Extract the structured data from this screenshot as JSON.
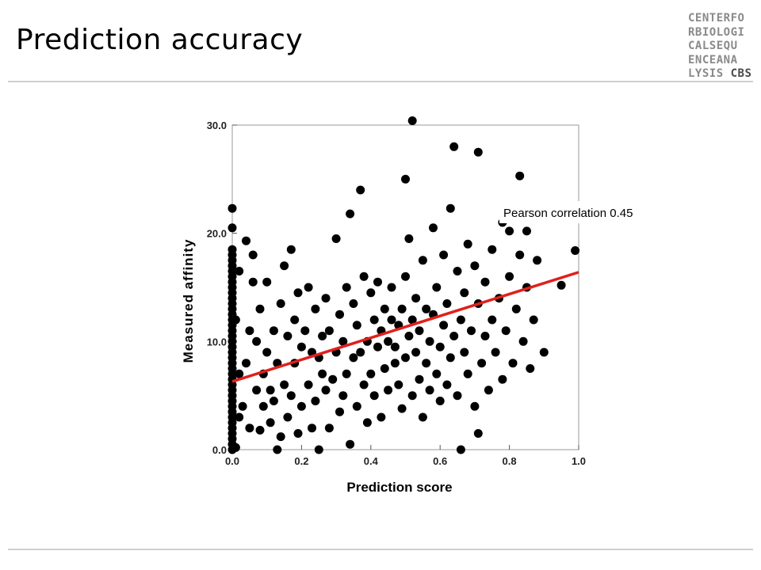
{
  "slide": {
    "title": "Prediction accuracy",
    "logo_lines": [
      "CENTERFO",
      "RBIOLOGI",
      "CALSEQU",
      "ENCEANA",
      "LYSIS"
    ],
    "logo_tail": "CBS"
  },
  "chart_data": {
    "type": "scatter",
    "title": "",
    "xlabel": "Prediction score",
    "ylabel": "Measured affinity",
    "xlim": [
      0,
      1
    ],
    "ylim": [
      0,
      30
    ],
    "x_ticks": [
      "0.0",
      "0.2",
      "0.4",
      "0.6",
      "0.8",
      "1.0"
    ],
    "y_ticks": [
      "0.0",
      "10.0",
      "20.0",
      "30.0"
    ],
    "grid": false,
    "annotation": "Pearson correlation 0.45",
    "trend_line": {
      "x": [
        0,
        1
      ],
      "y": [
        6.3,
        16.4
      ],
      "color": "#e0201c"
    },
    "point_color": "#000000",
    "points": [
      [
        0,
        0
      ],
      [
        0,
        0.5
      ],
      [
        0,
        1
      ],
      [
        0,
        1.5
      ],
      [
        0,
        2
      ],
      [
        0,
        2.5
      ],
      [
        0,
        3
      ],
      [
        0,
        3.5
      ],
      [
        0,
        4
      ],
      [
        0,
        4.5
      ],
      [
        0,
        5
      ],
      [
        0,
        5.5
      ],
      [
        0,
        6
      ],
      [
        0,
        6.5
      ],
      [
        0,
        7
      ],
      [
        0,
        7.5
      ],
      [
        0,
        8
      ],
      [
        0,
        8.5
      ],
      [
        0,
        9
      ],
      [
        0,
        9.5
      ],
      [
        0,
        10
      ],
      [
        0,
        10.5
      ],
      [
        0,
        11
      ],
      [
        0,
        11.5
      ],
      [
        0,
        12
      ],
      [
        0,
        12.5
      ],
      [
        0,
        13
      ],
      [
        0,
        13.5
      ],
      [
        0,
        14
      ],
      [
        0,
        14.5
      ],
      [
        0,
        15
      ],
      [
        0,
        15.5
      ],
      [
        0,
        16
      ],
      [
        0,
        16.5
      ],
      [
        0,
        17
      ],
      [
        0,
        17.5
      ],
      [
        0,
        18
      ],
      [
        0,
        18.5
      ],
      [
        0,
        20.5
      ],
      [
        0,
        22.3
      ],
      [
        0.01,
        0.2
      ],
      [
        0.02,
        3
      ],
      [
        0.02,
        7
      ],
      [
        0.01,
        12
      ],
      [
        0.02,
        16.5
      ],
      [
        0.03,
        4
      ],
      [
        0.04,
        8
      ],
      [
        0.04,
        19.3
      ],
      [
        0.05,
        2
      ],
      [
        0.05,
        11
      ],
      [
        0.06,
        18
      ],
      [
        0.06,
        15.5
      ],
      [
        0.07,
        5.5
      ],
      [
        0.07,
        10
      ],
      [
        0.08,
        1.8
      ],
      [
        0.08,
        13
      ],
      [
        0.09,
        7
      ],
      [
        0.09,
        4
      ],
      [
        0.1,
        9
      ],
      [
        0.1,
        15.5
      ],
      [
        0.11,
        2.5
      ],
      [
        0.11,
        5.5
      ],
      [
        0.12,
        11
      ],
      [
        0.12,
        4.5
      ],
      [
        0.13,
        0
      ],
      [
        0.13,
        8
      ],
      [
        0.14,
        13.5
      ],
      [
        0.14,
        1.2
      ],
      [
        0.15,
        6
      ],
      [
        0.15,
        17
      ],
      [
        0.16,
        10.5
      ],
      [
        0.16,
        3
      ],
      [
        0.17,
        18.5
      ],
      [
        0.17,
        5
      ],
      [
        0.18,
        12
      ],
      [
        0.18,
        8
      ],
      [
        0.19,
        1.5
      ],
      [
        0.19,
        14.5
      ],
      [
        0.2,
        4
      ],
      [
        0.2,
        9.5
      ],
      [
        0.21,
        11
      ],
      [
        0.22,
        6
      ],
      [
        0.22,
        15
      ],
      [
        0.23,
        2
      ],
      [
        0.23,
        9
      ],
      [
        0.24,
        13
      ],
      [
        0.24,
        4.5
      ],
      [
        0.25,
        0
      ],
      [
        0.25,
        8.5
      ],
      [
        0.26,
        7
      ],
      [
        0.26,
        10.5
      ],
      [
        0.27,
        5.5
      ],
      [
        0.27,
        14
      ],
      [
        0.28,
        2
      ],
      [
        0.28,
        11
      ],
      [
        0.29,
        6.5
      ],
      [
        0.3,
        9
      ],
      [
        0.3,
        19.5
      ],
      [
        0.31,
        3.5
      ],
      [
        0.31,
        12.5
      ],
      [
        0.32,
        5
      ],
      [
        0.32,
        10
      ],
      [
        0.33,
        7
      ],
      [
        0.33,
        15
      ],
      [
        0.34,
        0.5
      ],
      [
        0.34,
        21.8
      ],
      [
        0.35,
        8.5
      ],
      [
        0.35,
        13.5
      ],
      [
        0.36,
        4
      ],
      [
        0.36,
        11.5
      ],
      [
        0.37,
        9
      ],
      [
        0.37,
        24
      ],
      [
        0.38,
        6
      ],
      [
        0.38,
        16
      ],
      [
        0.39,
        2.5
      ],
      [
        0.39,
        10
      ],
      [
        0.4,
        7
      ],
      [
        0.4,
        14.5
      ],
      [
        0.41,
        12
      ],
      [
        0.41,
        5
      ],
      [
        0.42,
        9.5
      ],
      [
        0.42,
        15.5
      ],
      [
        0.43,
        3
      ],
      [
        0.43,
        11
      ],
      [
        0.44,
        7.5
      ],
      [
        0.44,
        13
      ],
      [
        0.45,
        10
      ],
      [
        0.45,
        5.5
      ],
      [
        0.46,
        12
      ],
      [
        0.46,
        15
      ],
      [
        0.47,
        8
      ],
      [
        0.47,
        9.5
      ],
      [
        0.48,
        11.5
      ],
      [
        0.48,
        6
      ],
      [
        0.49,
        13
      ],
      [
        0.49,
        3.8
      ],
      [
        0.5,
        8.5
      ],
      [
        0.5,
        25
      ],
      [
        0.5,
        16
      ],
      [
        0.51,
        10.5
      ],
      [
        0.51,
        19.5
      ],
      [
        0.52,
        5
      ],
      [
        0.52,
        12
      ],
      [
        0.52,
        30.4
      ],
      [
        0.53,
        9
      ],
      [
        0.53,
        14
      ],
      [
        0.54,
        6.5
      ],
      [
        0.54,
        11
      ],
      [
        0.55,
        17.5
      ],
      [
        0.55,
        3
      ],
      [
        0.56,
        8
      ],
      [
        0.56,
        13
      ],
      [
        0.57,
        10
      ],
      [
        0.57,
        5.5
      ],
      [
        0.58,
        12.5
      ],
      [
        0.58,
        20.5
      ],
      [
        0.59,
        7
      ],
      [
        0.59,
        15
      ],
      [
        0.6,
        9.5
      ],
      [
        0.6,
        4.5
      ],
      [
        0.61,
        11.5
      ],
      [
        0.61,
        18
      ],
      [
        0.62,
        6
      ],
      [
        0.62,
        13.5
      ],
      [
        0.63,
        8.5
      ],
      [
        0.63,
        22.3
      ],
      [
        0.64,
        10.5
      ],
      [
        0.64,
        28
      ],
      [
        0.65,
        5
      ],
      [
        0.65,
        16.5
      ],
      [
        0.66,
        12
      ],
      [
        0.66,
        0
      ],
      [
        0.67,
        9
      ],
      [
        0.67,
        14.5
      ],
      [
        0.68,
        7
      ],
      [
        0.68,
        19
      ],
      [
        0.69,
        11
      ],
      [
        0.7,
        4
      ],
      [
        0.7,
        17
      ],
      [
        0.71,
        1.5
      ],
      [
        0.71,
        13.5
      ],
      [
        0.71,
        27.5
      ],
      [
        0.72,
        8
      ],
      [
        0.73,
        10.5
      ],
      [
        0.73,
        15.5
      ],
      [
        0.74,
        5.5
      ],
      [
        0.75,
        12
      ],
      [
        0.75,
        18.5
      ],
      [
        0.76,
        9
      ],
      [
        0.77,
        14
      ],
      [
        0.78,
        21
      ],
      [
        0.78,
        6.5
      ],
      [
        0.79,
        11
      ],
      [
        0.8,
        16
      ],
      [
        0.8,
        20.2
      ],
      [
        0.81,
        8
      ],
      [
        0.82,
        13
      ],
      [
        0.83,
        18
      ],
      [
        0.83,
        25.3
      ],
      [
        0.84,
        10
      ],
      [
        0.85,
        15
      ],
      [
        0.85,
        20.2
      ],
      [
        0.86,
        7.5
      ],
      [
        0.87,
        12
      ],
      [
        0.88,
        17.5
      ],
      [
        0.9,
        9
      ],
      [
        0.95,
        15.2
      ],
      [
        0.99,
        21.5
      ],
      [
        0.99,
        18.4
      ]
    ]
  }
}
